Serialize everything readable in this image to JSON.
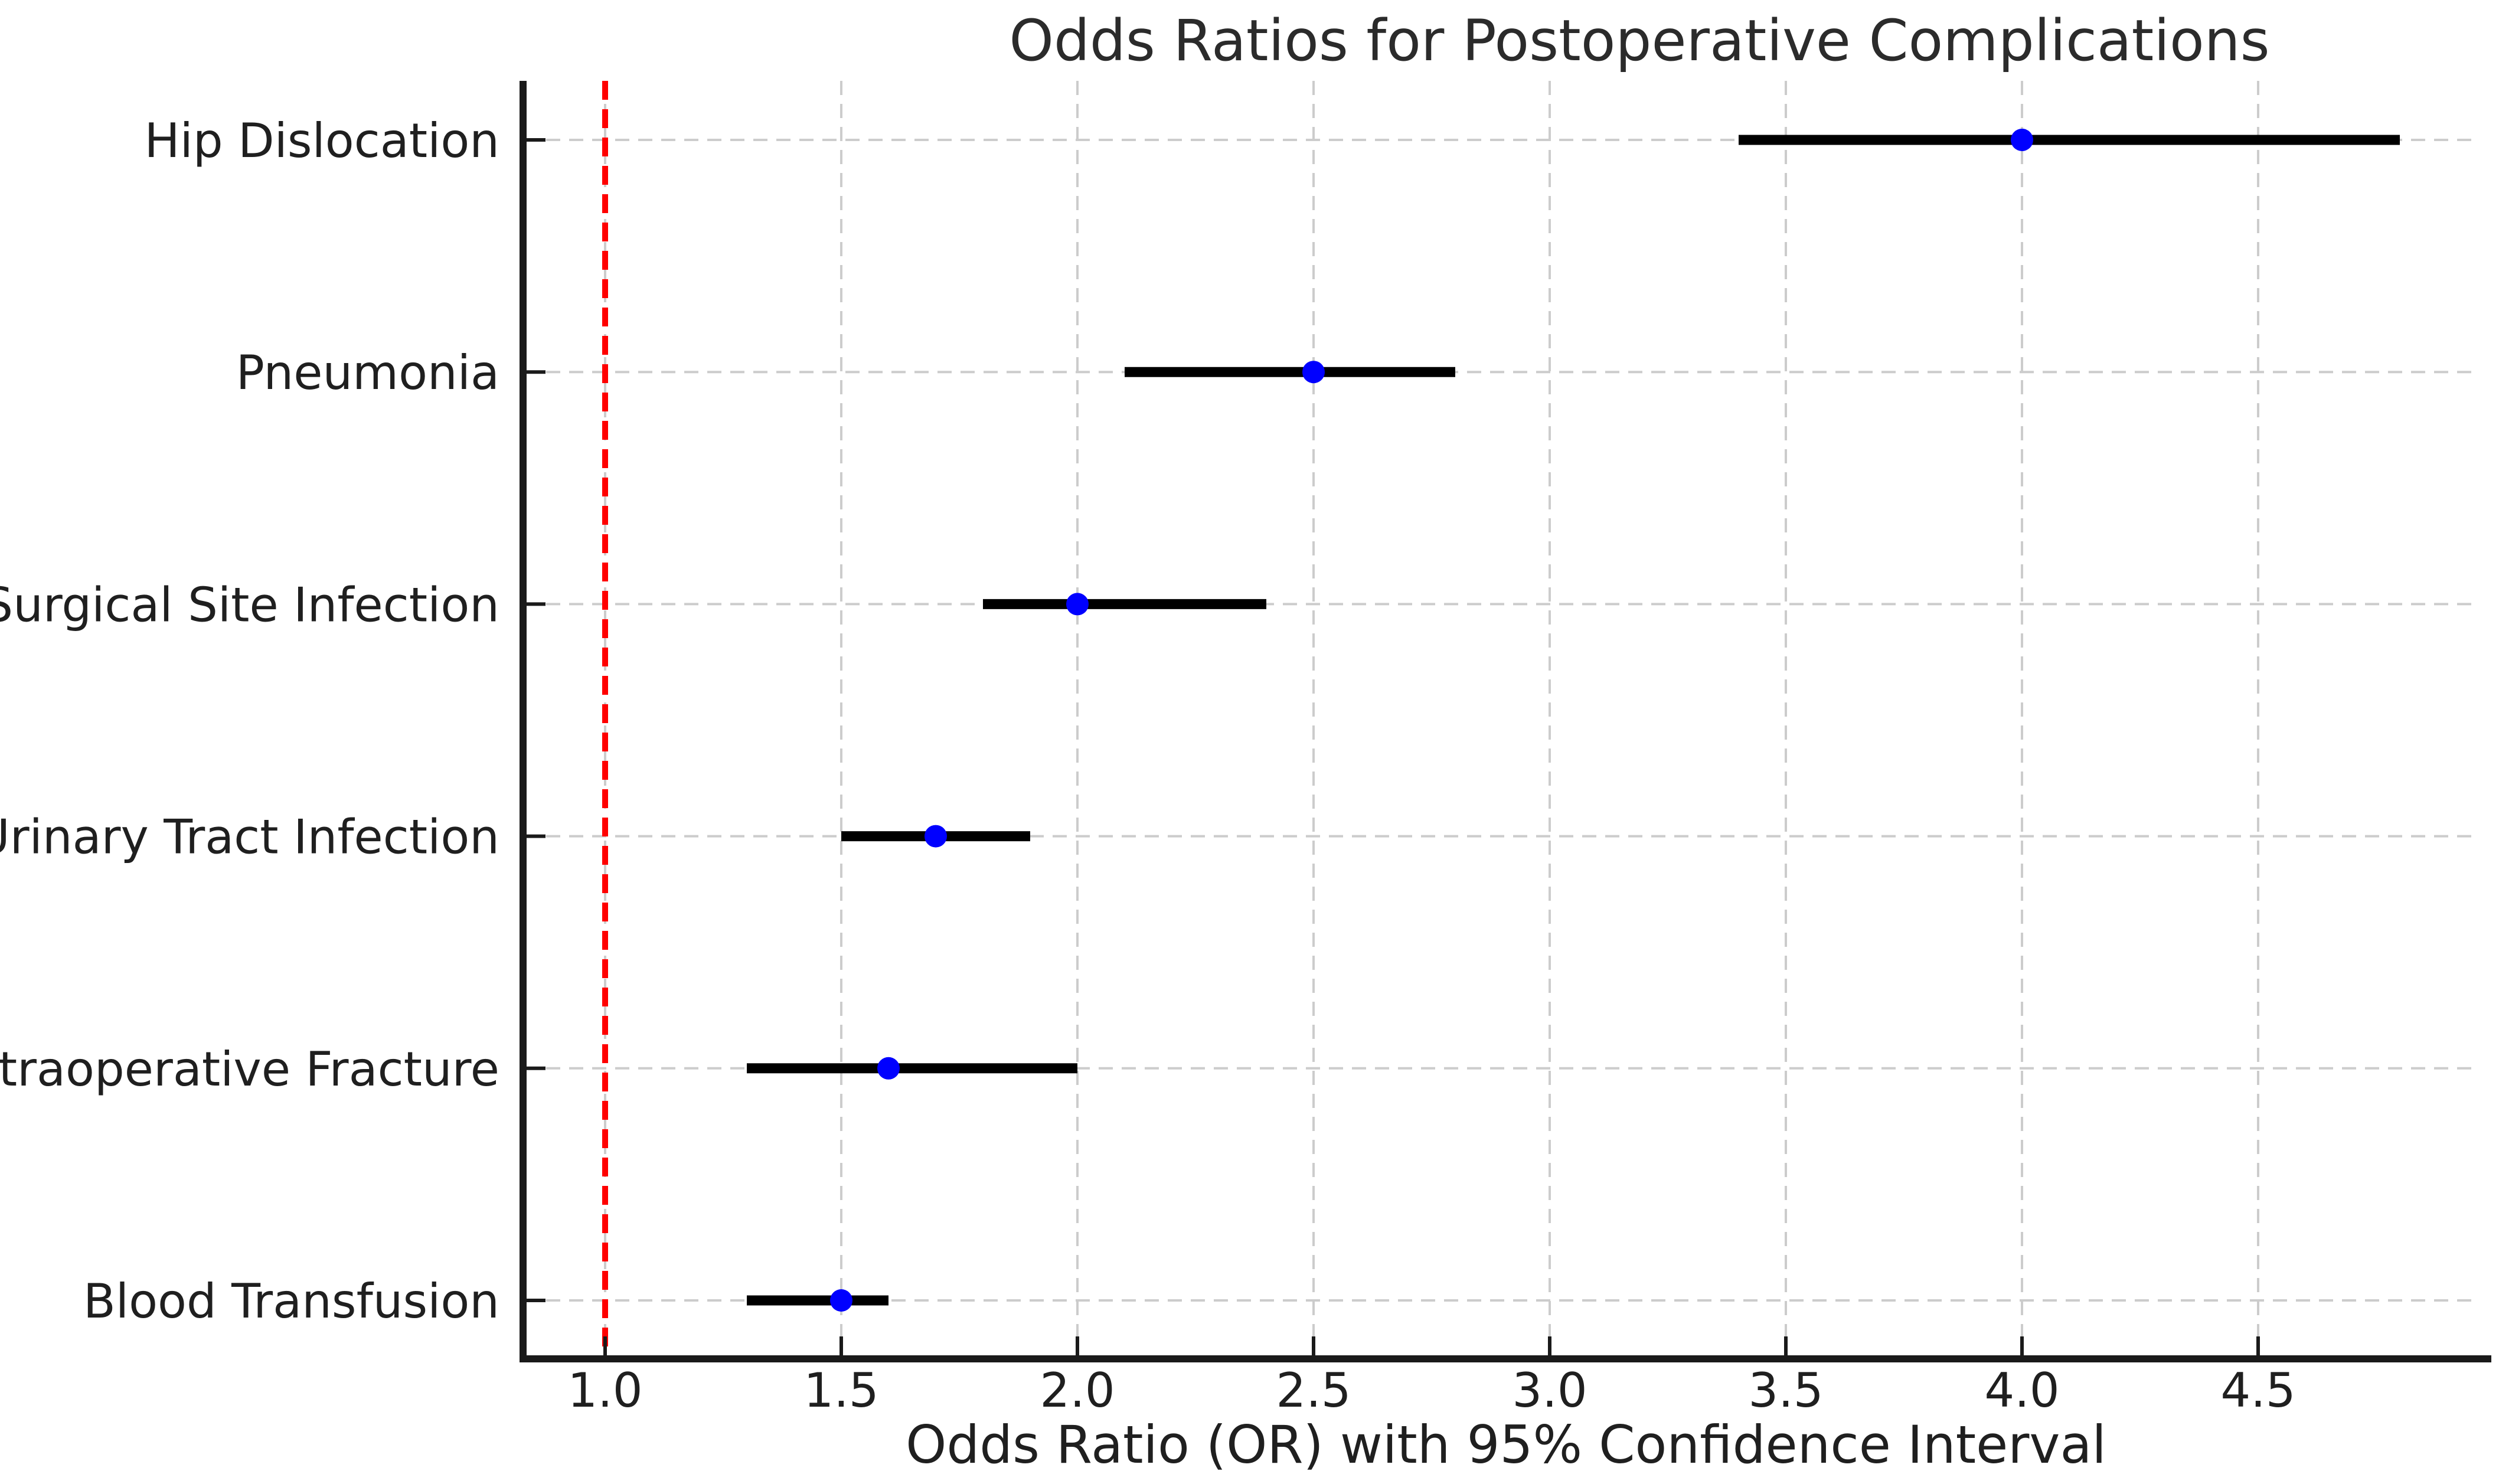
{
  "chart_data": {
    "type": "scatter",
    "subtype": "forest-plot-with-error-bars",
    "title": "Odds Ratios for Postoperative Complications",
    "xlabel": "Odds Ratio (OR) with 95% Confidence Interval",
    "ylabel": "",
    "categories": [
      "Hip Dislocation",
      "Pneumonia",
      "Surgical Site Infection",
      "Urinary Tract Infection",
      "Intraoperative Fracture",
      "Blood Transfusion"
    ],
    "series": [
      {
        "name": "Odds Ratio with 95% CI",
        "or": [
          4.0,
          2.5,
          2.0,
          1.7,
          1.6,
          1.5
        ],
        "ci_low": [
          3.4,
          2.1,
          1.8,
          1.5,
          1.3,
          1.3
        ],
        "ci_high": [
          4.8,
          2.8,
          2.4,
          1.9,
          2.0,
          1.6
        ]
      }
    ],
    "reference_line_x": 1.0,
    "xticks": [
      "1.0",
      "1.5",
      "2.0",
      "2.5",
      "3.0",
      "3.5",
      "4.0",
      "4.5"
    ],
    "xlim": [
      0.83,
      5.0
    ],
    "grid": "dashed both axes",
    "legend": false,
    "colors": {
      "marker": "#0000ff",
      "ci_line": "#000000",
      "reference_line": "#ff0000",
      "grid": "#cccccc",
      "axis": "#1a1a1a",
      "text": "#1f1f1f",
      "background": "#ffffff"
    }
  }
}
